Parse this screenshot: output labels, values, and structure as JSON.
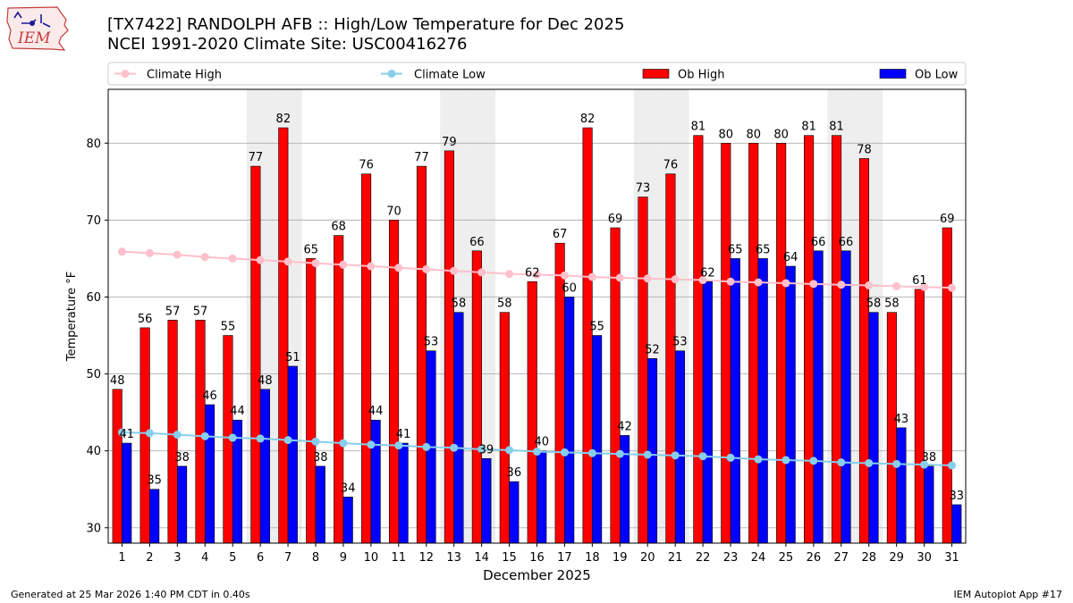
{
  "header": {
    "logo_text": "IEM",
    "title_line1": "[TX7422] RANDOLPH AFB :: High/Low Temperature for Dec 2025",
    "title_line2": "NCEI 1991-2020 Climate Site: USC00416276"
  },
  "footer": {
    "left": "Generated at 25 Mar 2026 1:40 PM CDT in 0.40s",
    "right": "IEM Autoplot App #17"
  },
  "colors": {
    "ob_high": "#ff0000",
    "ob_low": "#0000ff",
    "climate_high": "#ffc0cb",
    "climate_low": "#87ceeb",
    "weekend_shade": "#eeeeee",
    "grid": "#b0b0b0"
  },
  "chart_data": {
    "type": "bar",
    "xlabel": "December 2025",
    "ylabel": "Temperature °F",
    "ylim": [
      28,
      87
    ],
    "yticks": [
      30,
      40,
      50,
      60,
      70,
      80
    ],
    "grid": "horizontal",
    "legend_position": "top",
    "shaded_days": [
      6,
      7,
      13,
      14,
      20,
      21,
      27,
      28
    ],
    "categories": [
      "1",
      "2",
      "3",
      "4",
      "5",
      "6",
      "7",
      "8",
      "9",
      "10",
      "11",
      "12",
      "13",
      "14",
      "15",
      "16",
      "17",
      "18",
      "19",
      "20",
      "21",
      "22",
      "23",
      "24",
      "25",
      "26",
      "27",
      "28",
      "29",
      "30",
      "31"
    ],
    "series": [
      {
        "name": "Climate High",
        "kind": "line",
        "values": [
          65.9,
          65.7,
          65.5,
          65.2,
          65.0,
          64.8,
          64.6,
          64.4,
          64.2,
          64.0,
          63.8,
          63.6,
          63.4,
          63.2,
          63.0,
          62.9,
          62.8,
          62.6,
          62.5,
          62.4,
          62.3,
          62.2,
          62.0,
          61.9,
          61.8,
          61.7,
          61.6,
          61.5,
          61.4,
          61.3,
          61.2
        ]
      },
      {
        "name": "Climate Low",
        "kind": "line",
        "values": [
          42.4,
          42.3,
          42.1,
          41.9,
          41.7,
          41.6,
          41.4,
          41.2,
          41.0,
          40.8,
          40.7,
          40.5,
          40.4,
          40.2,
          40.1,
          39.9,
          39.8,
          39.7,
          39.6,
          39.5,
          39.4,
          39.3,
          39.1,
          38.9,
          38.8,
          38.7,
          38.5,
          38.4,
          38.3,
          38.2,
          38.1
        ]
      },
      {
        "name": "Ob High",
        "kind": "bar",
        "values": [
          48,
          56,
          57,
          57,
          55,
          77,
          82,
          65,
          68,
          76,
          70,
          77,
          79,
          66,
          58,
          62,
          67,
          82,
          69,
          73,
          76,
          81,
          80,
          80,
          80,
          81,
          81,
          78,
          58,
          61,
          69
        ]
      },
      {
        "name": "Ob Low",
        "kind": "bar",
        "values": [
          41,
          35,
          38,
          46,
          44,
          48,
          51,
          38,
          34,
          44,
          41,
          53,
          58,
          39,
          36,
          40,
          60,
          55,
          42,
          52,
          53,
          62,
          65,
          65,
          64,
          66,
          66,
          58,
          43,
          38,
          33
        ]
      }
    ]
  }
}
